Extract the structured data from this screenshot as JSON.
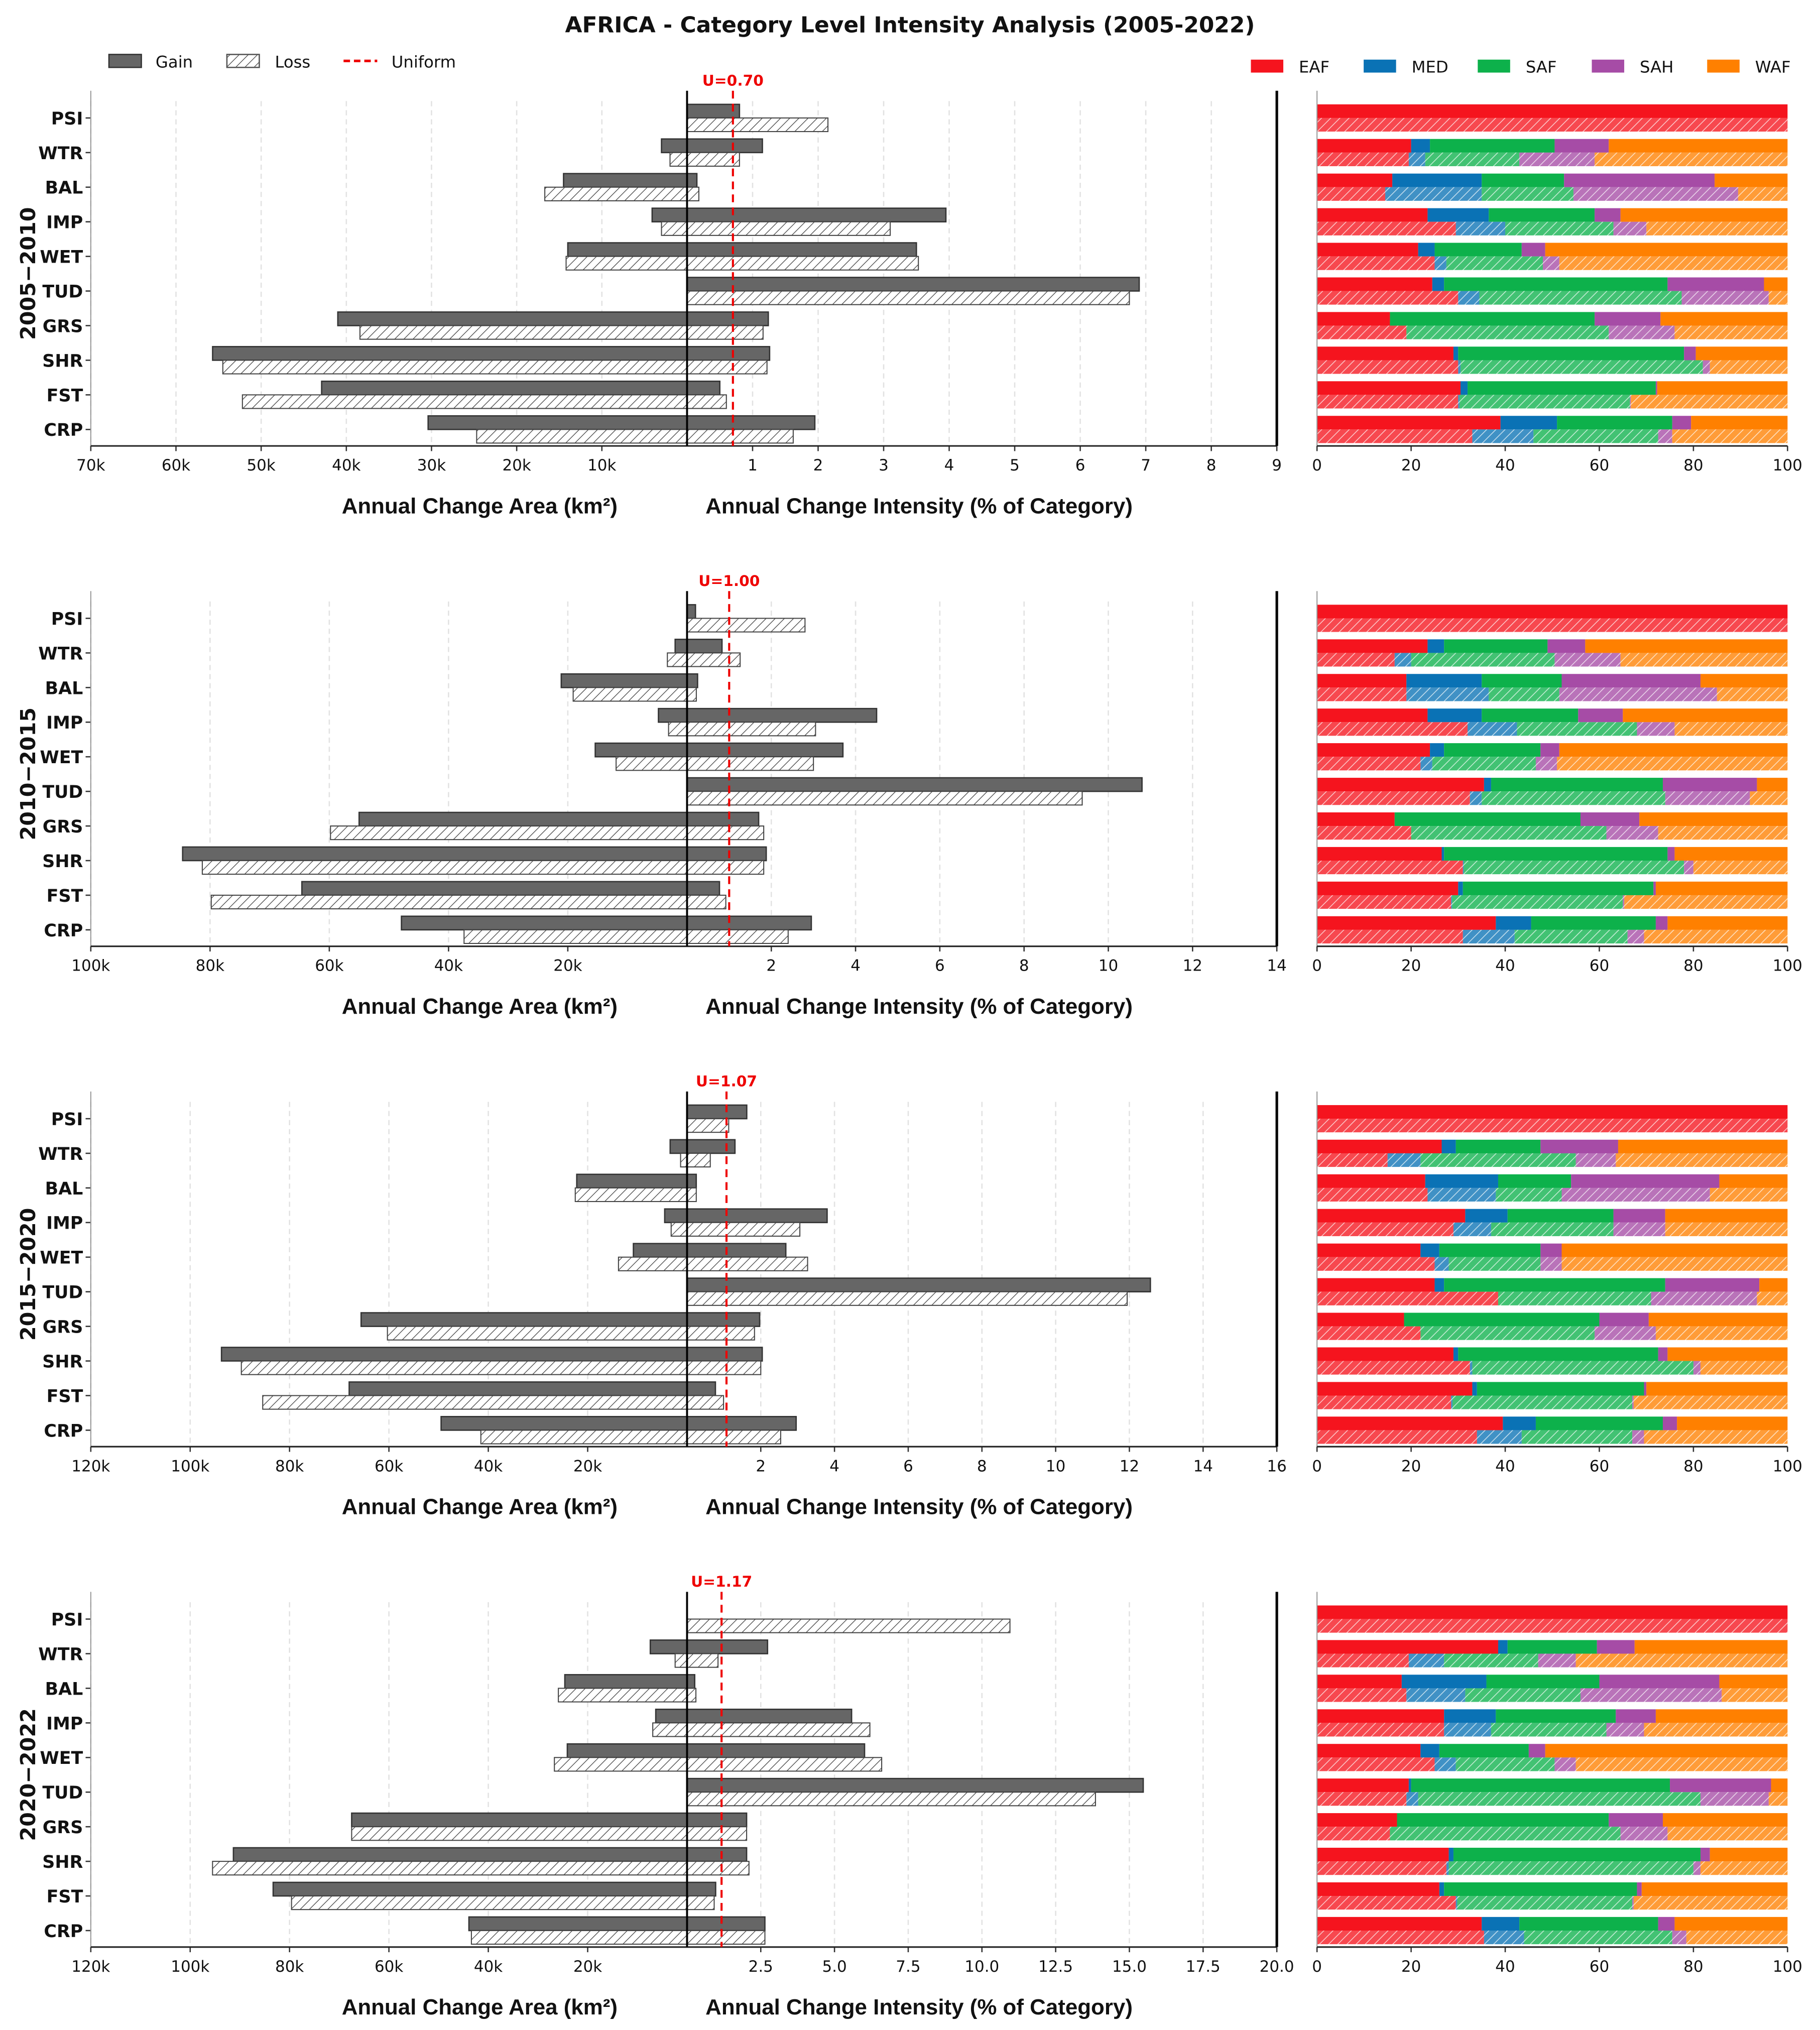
{
  "title": "AFRICA - Category Level Intensity Analysis  (2005-2022)",
  "legend": {
    "gain": "Gain",
    "loss": "Loss",
    "uniform": "Uniform",
    "regions": [
      {
        "name": "EAF",
        "color": "#f5141e"
      },
      {
        "name": "MED",
        "color": "#0a72b5"
      },
      {
        "name": "SAF",
        "color": "#0db14b"
      },
      {
        "name": "SAH",
        "color": "#a64ca6"
      },
      {
        "name": "WAF",
        "color": "#ff8000"
      }
    ]
  },
  "colors": {
    "gain": "#666666",
    "loss_hatch": "#444444",
    "uniform": "#ee0000"
  },
  "xlabels": {
    "area": "Annual Change Area (km²)",
    "intensity": "Annual Change Intensity (% of Category)"
  },
  "categories": [
    "PSI",
    "WTR",
    "BAL",
    "IMP",
    "WET",
    "TUD",
    "GRS",
    "SHR",
    "FST",
    "CRP"
  ],
  "chart_data": [
    {
      "type": "bar",
      "period": "2005−2010",
      "uniform": 0.7,
      "uniform_label": "U=0.70",
      "area_max": 70000,
      "area_ticks": [
        "70k",
        "60k",
        "50k",
        "40k",
        "30k",
        "20k",
        "10k"
      ],
      "intensity_max": 9,
      "intensity_ticks": [
        "1",
        "2",
        "3",
        "4",
        "5",
        "6",
        "7",
        "8",
        "9"
      ],
      "share_ticks": [
        "0",
        "20",
        "40",
        "60",
        "80",
        "100"
      ],
      "gain_area_km2": [
        0,
        3000,
        14500,
        4100,
        14000,
        0,
        41000,
        55700,
        42900,
        30400
      ],
      "loss_area_km2": [
        0,
        2000,
        16700,
        3000,
        14200,
        0,
        38400,
        54500,
        52200,
        24700
      ],
      "gain_intensity": [
        0.8,
        1.15,
        0.15,
        3.95,
        3.5,
        6.9,
        1.24,
        1.26,
        0.5,
        1.95
      ],
      "loss_intensity": [
        2.15,
        0.8,
        0.18,
        3.1,
        3.53,
        6.75,
        1.16,
        1.22,
        0.6,
        1.62
      ],
      "gain_share": [
        [
          100,
          0,
          0,
          0,
          0
        ],
        [
          20,
          4,
          26.5,
          11.5,
          38
        ],
        [
          16,
          19,
          17.5,
          32,
          15.5
        ],
        [
          23.5,
          13,
          22.5,
          5.5,
          35.5
        ],
        [
          21.5,
          3.5,
          18.5,
          5,
          51.5
        ],
        [
          24.5,
          2.5,
          47.5,
          20.5,
          5
        ],
        [
          15.5,
          0,
          43.5,
          14,
          27
        ],
        [
          29,
          1,
          48,
          2.5,
          19.5
        ],
        [
          30.5,
          1.5,
          40,
          0.3,
          27.7
        ],
        [
          39,
          12,
          24.5,
          4,
          20.5
        ]
      ],
      "loss_share": [
        [
          100,
          0,
          0,
          0,
          0
        ],
        [
          19.5,
          3.5,
          20,
          16,
          41
        ],
        [
          14.5,
          20.5,
          19.5,
          35,
          10.5
        ],
        [
          29.5,
          10.5,
          23,
          7,
          30
        ],
        [
          25,
          2.5,
          20.5,
          3.5,
          48.5
        ],
        [
          30,
          4.5,
          43,
          18.5,
          4
        ],
        [
          19,
          0,
          43,
          14,
          24
        ],
        [
          30,
          0.5,
          51.5,
          1.5,
          16.5
        ],
        [
          30,
          0.3,
          36.2,
          0.2,
          33.3
        ],
        [
          33,
          13,
          26.5,
          3,
          24.5
        ]
      ]
    },
    {
      "type": "bar",
      "period": "2010−2015",
      "uniform": 1.0,
      "uniform_label": "U=1.00",
      "area_max": 100000,
      "area_ticks": [
        "100k",
        "80k",
        "60k",
        "40k",
        "20k"
      ],
      "intensity_max": 14,
      "intensity_ticks": [
        "2",
        "4",
        "6",
        "8",
        "10",
        "12",
        "14"
      ],
      "share_ticks": [
        "0",
        "20",
        "40",
        "60",
        "80",
        "100"
      ],
      "gain_area_km2": [
        0,
        2000,
        21100,
        4800,
        15400,
        0,
        55000,
        84600,
        64600,
        47900
      ],
      "loss_area_km2": [
        0,
        3300,
        19100,
        3100,
        11900,
        0,
        59800,
        81300,
        79800,
        37400
      ],
      "gain_intensity": [
        0.2,
        0.83,
        0.25,
        4.5,
        3.7,
        10.8,
        1.7,
        1.88,
        0.77,
        2.95
      ],
      "loss_intensity": [
        2.8,
        1.26,
        0.22,
        3.05,
        3.0,
        9.38,
        1.82,
        1.82,
        0.92,
        2.4
      ],
      "gain_share": [
        [
          100,
          0,
          0,
          0,
          0
        ],
        [
          23.5,
          3.5,
          22,
          8,
          43
        ],
        [
          19,
          16,
          17,
          29.5,
          18.5
        ],
        [
          23.5,
          11.5,
          20.5,
          9.5,
          35
        ],
        [
          24,
          3,
          20.5,
          4,
          48.5
        ],
        [
          35.5,
          1.5,
          36.5,
          20,
          6.5
        ],
        [
          16.5,
          0,
          39.5,
          12.5,
          31.5
        ],
        [
          26.5,
          0.5,
          47.5,
          1.5,
          24
        ],
        [
          30,
          1,
          40.5,
          0.5,
          28
        ],
        [
          38,
          7.5,
          26.5,
          2.5,
          25.5
        ]
      ],
      "loss_share": [
        [
          100,
          0,
          0,
          0,
          0
        ],
        [
          16.5,
          3.5,
          30.5,
          14,
          35.5
        ],
        [
          19,
          17.5,
          15,
          33.5,
          15
        ],
        [
          32,
          10.5,
          25.5,
          8,
          24
        ],
        [
          22,
          2.5,
          22,
          4.5,
          49
        ],
        [
          32.5,
          2.5,
          39,
          18,
          8
        ],
        [
          20,
          0,
          41.5,
          11,
          27.5
        ],
        [
          31,
          0.2,
          46.8,
          2,
          20
        ],
        [
          28.5,
          0.2,
          36.3,
          0.3,
          34.7
        ],
        [
          31,
          11,
          24,
          3.5,
          30.5
        ]
      ]
    },
    {
      "type": "bar",
      "period": "2015−2020",
      "uniform": 1.07,
      "uniform_label": "U=1.07",
      "area_max": 120000,
      "area_ticks": [
        "120k",
        "100k",
        "80k",
        "60k",
        "40k",
        "20k"
      ],
      "intensity_max": 16,
      "intensity_ticks": [
        "2",
        "4",
        "6",
        "8",
        "10",
        "12",
        "14",
        "16"
      ],
      "share_ticks": [
        "0",
        "20",
        "40",
        "60",
        "80",
        "100"
      ],
      "gain_area_km2": [
        0,
        3400,
        22200,
        4500,
        10800,
        0,
        65600,
        93700,
        68000,
        49500
      ],
      "loss_area_km2": [
        0,
        1300,
        22500,
        3200,
        13800,
        0,
        60300,
        89700,
        85400,
        41500
      ],
      "gain_intensity": [
        1.62,
        1.3,
        0.25,
        3.8,
        2.68,
        12.57,
        1.97,
        2.04,
        0.77,
        2.96
      ],
      "loss_intensity": [
        1.13,
        0.63,
        0.25,
        3.06,
        3.27,
        11.94,
        1.83,
        2.0,
        0.99,
        2.54
      ],
      "gain_share": [
        [
          100,
          0,
          0,
          0,
          0
        ],
        [
          26.5,
          3,
          18,
          16.5,
          36
        ],
        [
          23,
          15.5,
          15.5,
          31.5,
          14.5
        ],
        [
          31.5,
          9,
          22.5,
          11,
          26
        ],
        [
          22,
          4,
          21.5,
          4.5,
          48
        ],
        [
          25,
          2,
          47,
          20,
          6
        ],
        [
          18.5,
          0,
          41.5,
          10.5,
          29.5
        ],
        [
          29,
          1,
          42.5,
          2,
          25.5
        ],
        [
          33,
          1,
          35.5,
          0.5,
          30
        ],
        [
          39.5,
          7,
          27,
          3,
          23.5
        ]
      ],
      "loss_share": [
        [
          100,
          0,
          0,
          0,
          0
        ],
        [
          15,
          7,
          33,
          8.5,
          36.5
        ],
        [
          23.5,
          14.5,
          14,
          31.5,
          16.5
        ],
        [
          29,
          8,
          26,
          11,
          26
        ],
        [
          25,
          3,
          19.5,
          4.5,
          48
        ],
        [
          38.5,
          0,
          32.5,
          22.5,
          6.5
        ],
        [
          22,
          0,
          37,
          13,
          28
        ],
        [
          32.5,
          0.5,
          47,
          1.5,
          18.5
        ],
        [
          28.5,
          0.3,
          38.2,
          0.3,
          32.7
        ],
        [
          34,
          9.5,
          23.5,
          2.5,
          30.5
        ]
      ]
    },
    {
      "type": "bar",
      "period": "2020−2022",
      "uniform": 1.17,
      "uniform_label": "U=1.17",
      "area_max": 120000,
      "area_ticks": [
        "120k",
        "100k",
        "80k",
        "60k",
        "40k",
        "20k"
      ],
      "intensity_max": 20,
      "intensity_ticks": [
        "2.5",
        "5.0",
        "7.5",
        "10.0",
        "12.5",
        "15.0",
        "17.5",
        "20.0"
      ],
      "share_ticks": [
        "0",
        "20",
        "40",
        "60",
        "80",
        "100"
      ],
      "gain_area_km2": [
        0,
        7400,
        24600,
        6300,
        24100,
        0,
        67500,
        91300,
        83300,
        43900
      ],
      "loss_area_km2": [
        0,
        2400,
        25900,
        6900,
        26700,
        0,
        67500,
        95500,
        79600,
        43400
      ],
      "gain_intensity": [
        0,
        2.73,
        0.26,
        5.58,
        6.02,
        15.47,
        2.02,
        2.02,
        0.97,
        2.64
      ],
      "loss_intensity": [
        10.95,
        1.05,
        0.3,
        6.2,
        6.6,
        13.85,
        2.02,
        2.1,
        0.92,
        2.64
      ],
      "gain_share": [
        [
          100,
          0,
          0,
          0,
          0
        ],
        [
          38.5,
          2,
          19,
          8,
          32.5
        ],
        [
          18,
          18,
          24,
          25.5,
          14.5
        ],
        [
          27,
          11,
          25.5,
          8.5,
          28
        ],
        [
          22,
          4,
          19,
          3.5,
          51.5
        ],
        [
          19.5,
          0.5,
          55,
          21.5,
          3.5
        ],
        [
          17,
          0,
          45,
          11.5,
          26.5
        ],
        [
          28,
          1,
          52.5,
          2,
          16.5
        ],
        [
          26,
          1,
          41,
          1,
          31
        ],
        [
          35,
          8,
          29.5,
          3.5,
          24
        ]
      ],
      "loss_share": [
        [
          100,
          0,
          0,
          0,
          0
        ],
        [
          19.5,
          7.5,
          20,
          8,
          45
        ],
        [
          19,
          12.5,
          24.5,
          30,
          14
        ],
        [
          27,
          10,
          24.5,
          8,
          30.5
        ],
        [
          25,
          4.5,
          21,
          4.5,
          45
        ],
        [
          19,
          2.5,
          60,
          14.5,
          4
        ],
        [
          15.5,
          0,
          49,
          10,
          25.5
        ],
        [
          27.5,
          0.5,
          52,
          1.5,
          18.5
        ],
        [
          29.5,
          0.3,
          37.2,
          0.3,
          32.7
        ],
        [
          35.5,
          8.5,
          31.5,
          3,
          21.5
        ]
      ]
    }
  ]
}
